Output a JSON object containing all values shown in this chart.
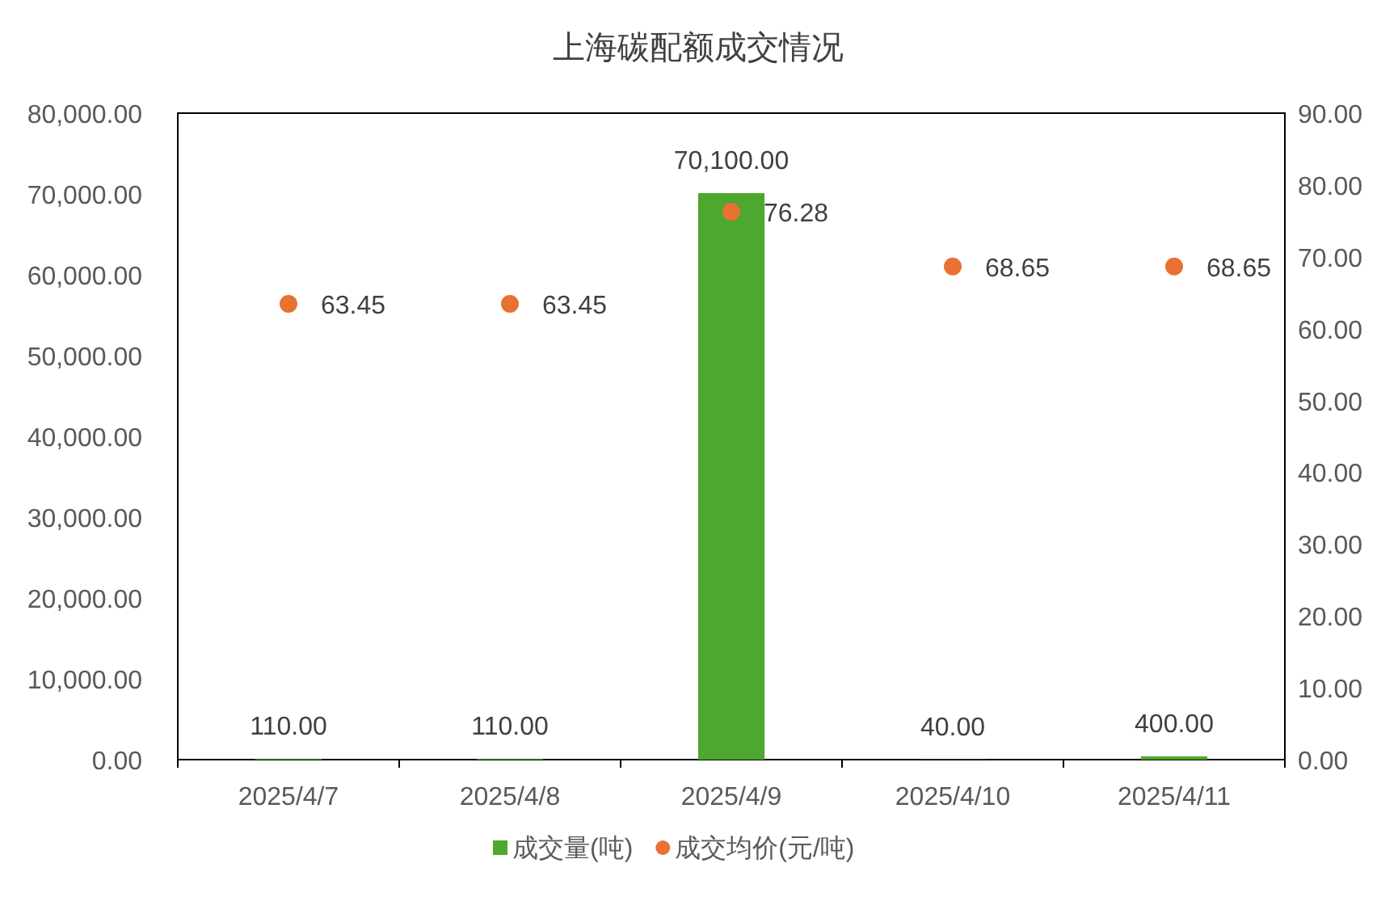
{
  "chart_data": {
    "type": "bar",
    "title": "上海碳配额成交情况",
    "categories": [
      "2025/4/7",
      "2025/4/8",
      "2025/4/9",
      "2025/4/10",
      "2025/4/11"
    ],
    "series": [
      {
        "name": "成交量(吨)",
        "color": "#4ea72e",
        "values": [
          110,
          110,
          70100,
          40,
          400
        ],
        "value_labels": [
          "110.00",
          "110.00",
          "70,100.00",
          "40.00",
          "400.00"
        ]
      },
      {
        "name": "成交均价(元/吨)",
        "type": "scatter",
        "axis": "y2",
        "marker": "circle",
        "color": "#e97132",
        "values": [
          63.45,
          63.45,
          76.28,
          68.65,
          68.65
        ],
        "value_labels": [
          "63.45",
          "63.45",
          "76.28",
          "68.65",
          "68.65"
        ]
      }
    ],
    "ylim": [
      0,
      80000
    ],
    "yticks": [
      {
        "value": 0,
        "label": "0.00"
      },
      {
        "value": 10000,
        "label": "10,000.00"
      },
      {
        "value": 20000,
        "label": "20,000.00"
      },
      {
        "value": 30000,
        "label": "30,000.00"
      },
      {
        "value": 40000,
        "label": "40,000.00"
      },
      {
        "value": 50000,
        "label": "50,000.00"
      },
      {
        "value": 60000,
        "label": "60,000.00"
      },
      {
        "value": 70000,
        "label": "70,000.00"
      },
      {
        "value": 80000,
        "label": "80,000.00"
      }
    ],
    "y2lim": [
      0,
      90
    ],
    "y2ticks": [
      {
        "value": 0,
        "label": "0.00"
      },
      {
        "value": 10,
        "label": "10.00"
      },
      {
        "value": 20,
        "label": "20.00"
      },
      {
        "value": 30,
        "label": "30.00"
      },
      {
        "value": 40,
        "label": "40.00"
      },
      {
        "value": 50,
        "label": "50.00"
      },
      {
        "value": 60,
        "label": "60.00"
      },
      {
        "value": 70,
        "label": "70.00"
      },
      {
        "value": 80,
        "label": "80.00"
      },
      {
        "value": 90,
        "label": "90.00"
      }
    ],
    "grid": false,
    "legend": "bottom"
  }
}
